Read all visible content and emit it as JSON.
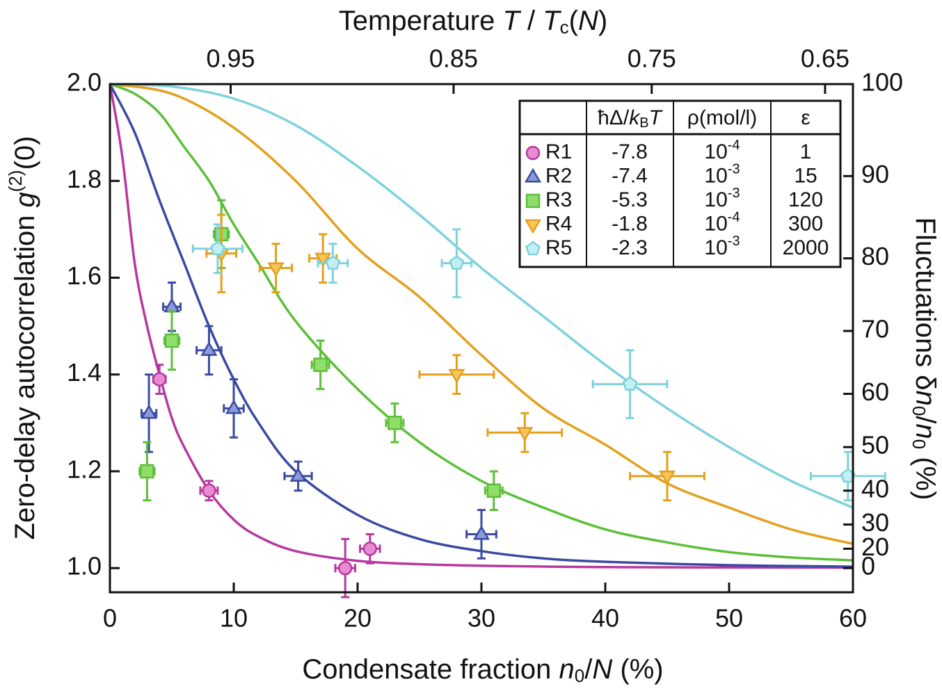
{
  "chart_data": {
    "type": "scatter",
    "xlabel": [
      "Condensate fraction ",
      "n",
      "0",
      "/",
      "N",
      " (%)"
    ],
    "x2label": [
      "Temperature ",
      "T",
      " / ",
      "T",
      "c",
      "(",
      "N",
      ")"
    ],
    "ylabel": [
      "Zero-delay autocorrelation ",
      "g",
      "(2)",
      "(0)"
    ],
    "y2label": [
      "Fluctuations δ",
      "n",
      "0",
      "/",
      "n",
      "0",
      " (%)"
    ],
    "xlim": [
      0,
      60
    ],
    "xticks": [
      0,
      10,
      20,
      30,
      40,
      50,
      60
    ],
    "x2scale": "quadratic",
    "x2ticks": [
      0.95,
      0.85,
      0.75,
      0.65
    ],
    "ylim": [
      0.95,
      2.0
    ],
    "yticks": [
      {
        "value": 1.0,
        "label": "1.0"
      },
      1.2,
      1.4,
      1.6,
      1.8,
      {
        "value": 2.0,
        "label": "2.0"
      }
    ],
    "y2scale": "quadratic",
    "y2lim": [
      0,
      100
    ],
    "y2ticks": [
      0,
      20,
      30,
      40,
      50,
      60,
      70,
      80,
      90,
      100
    ],
    "table_header": [
      [
        "ħΔ/",
        "k",
        "B",
        "T"
      ],
      "ρ(mol/l)",
      "ε"
    ],
    "series": [
      {
        "name": "R1",
        "marker": "circle",
        "color": "#b8389e",
        "fill": "#e88bd3",
        "delta": "-7.8",
        "rho": [
          "10",
          "-4"
        ],
        "epsilon": "1",
        "x": [
          4.0,
          8.0,
          19.0,
          21.0
        ],
        "values": [
          1.39,
          1.16,
          1.0,
          1.04
        ],
        "xerr": [
          0.5,
          0.7,
          0.8,
          0.8
        ],
        "yerr": [
          0.03,
          0.02,
          0.06,
          0.03
        ],
        "curve": {
          "x": [
            0,
            1,
            2,
            3,
            4,
            5,
            6,
            8,
            10,
            12,
            15,
            20,
            25,
            30,
            40,
            60
          ],
          "values": [
            2.0,
            1.85,
            1.63,
            1.5,
            1.4,
            1.31,
            1.25,
            1.16,
            1.1,
            1.065,
            1.035,
            1.015,
            1.008,
            1.005,
            1.002,
            1.001
          ]
        }
      },
      {
        "name": "R2",
        "marker": "triangle-up",
        "color": "#3a4aa3",
        "fill": "#8b9ad8",
        "delta": "-7.4",
        "rho": [
          "10",
          "-3"
        ],
        "epsilon": "15",
        "x": [
          3.15,
          5.0,
          8.0,
          10.0,
          15.2,
          30.0
        ],
        "values": [
          1.32,
          1.54,
          1.45,
          1.33,
          1.19,
          1.07
        ],
        "xerr": [
          0.6,
          0.7,
          1.0,
          0.8,
          1.1,
          1.2
        ],
        "yerr": [
          0.08,
          0.05,
          0.05,
          0.06,
          0.03,
          0.05
        ],
        "curve": {
          "x": [
            0,
            2,
            4,
            6,
            8,
            10,
            12,
            15,
            20,
            25,
            30,
            35,
            40,
            50,
            60
          ],
          "values": [
            2.0,
            1.9,
            1.76,
            1.63,
            1.5,
            1.39,
            1.3,
            1.2,
            1.11,
            1.06,
            1.035,
            1.02,
            1.013,
            1.006,
            1.003
          ]
        }
      },
      {
        "name": "R3",
        "marker": "square",
        "color": "#5cbf38",
        "fill": "#90dd6a",
        "delta": "-5.3",
        "rho": [
          "10",
          "-3"
        ],
        "epsilon": "120",
        "x": [
          3.0,
          5.0,
          9.0,
          17.0,
          23.0,
          31.0
        ],
        "values": [
          1.2,
          1.47,
          1.69,
          1.42,
          1.3,
          1.16
        ],
        "xerr": [
          0.6,
          0.6,
          0.6,
          0.7,
          0.7,
          0.7
        ],
        "yerr": [
          0.06,
          0.06,
          0.07,
          0.05,
          0.04,
          0.04
        ],
        "curve": {
          "x": [
            0,
            2,
            4,
            6,
            8,
            10,
            12,
            15,
            20,
            25,
            30,
            35,
            40,
            45,
            50,
            55,
            60
          ],
          "values": [
            2.0,
            1.98,
            1.94,
            1.87,
            1.8,
            1.71,
            1.63,
            1.51,
            1.37,
            1.26,
            1.18,
            1.125,
            1.08,
            1.053,
            1.033,
            1.022,
            1.016
          ]
        }
      },
      {
        "name": "R4",
        "marker": "triangle-down",
        "color": "#e3a01c",
        "fill": "#f5c55a",
        "delta": "-1.8",
        "rho": [
          "10",
          "-4"
        ],
        "epsilon": "300",
        "x": [
          9.0,
          13.4,
          17.2,
          28.0,
          33.5,
          45.0
        ],
        "values": [
          1.65,
          1.62,
          1.64,
          1.4,
          1.28,
          1.19
        ],
        "xerr": [
          1.2,
          1.3,
          1.1,
          3.0,
          3.0,
          3.0
        ],
        "yerr": [
          0.08,
          0.05,
          0.05,
          0.04,
          0.04,
          0.05
        ],
        "curve": {
          "x": [
            0,
            5,
            10,
            15,
            20,
            25,
            30,
            35,
            40,
            45,
            50,
            55,
            60
          ],
          "values": [
            2.0,
            1.98,
            1.91,
            1.8,
            1.66,
            1.56,
            1.44,
            1.33,
            1.255,
            1.175,
            1.125,
            1.08,
            1.05
          ]
        }
      },
      {
        "name": "R5",
        "marker": "pentagon",
        "color": "#7ed2dc",
        "fill": "#c4f0f3",
        "delta": "-2.3",
        "rho": [
          "10",
          "-3"
        ],
        "epsilon": "2000",
        "x": [
          8.7,
          18.0,
          28.0,
          42.0,
          59.6
        ],
        "values": [
          1.66,
          1.63,
          1.63,
          1.38,
          1.19
        ],
        "xerr": [
          2.0,
          1.2,
          1.2,
          3.0,
          3.0
        ],
        "yerr": [
          0.05,
          0.04,
          0.07,
          0.07,
          0.05
        ],
        "curve": {
          "x": [
            0,
            5,
            10,
            15,
            20,
            25,
            30,
            35,
            40,
            45,
            50,
            55,
            60
          ],
          "values": [
            2.0,
            1.995,
            1.97,
            1.915,
            1.83,
            1.73,
            1.62,
            1.52,
            1.42,
            1.33,
            1.25,
            1.18,
            1.125
          ]
        }
      }
    ]
  }
}
